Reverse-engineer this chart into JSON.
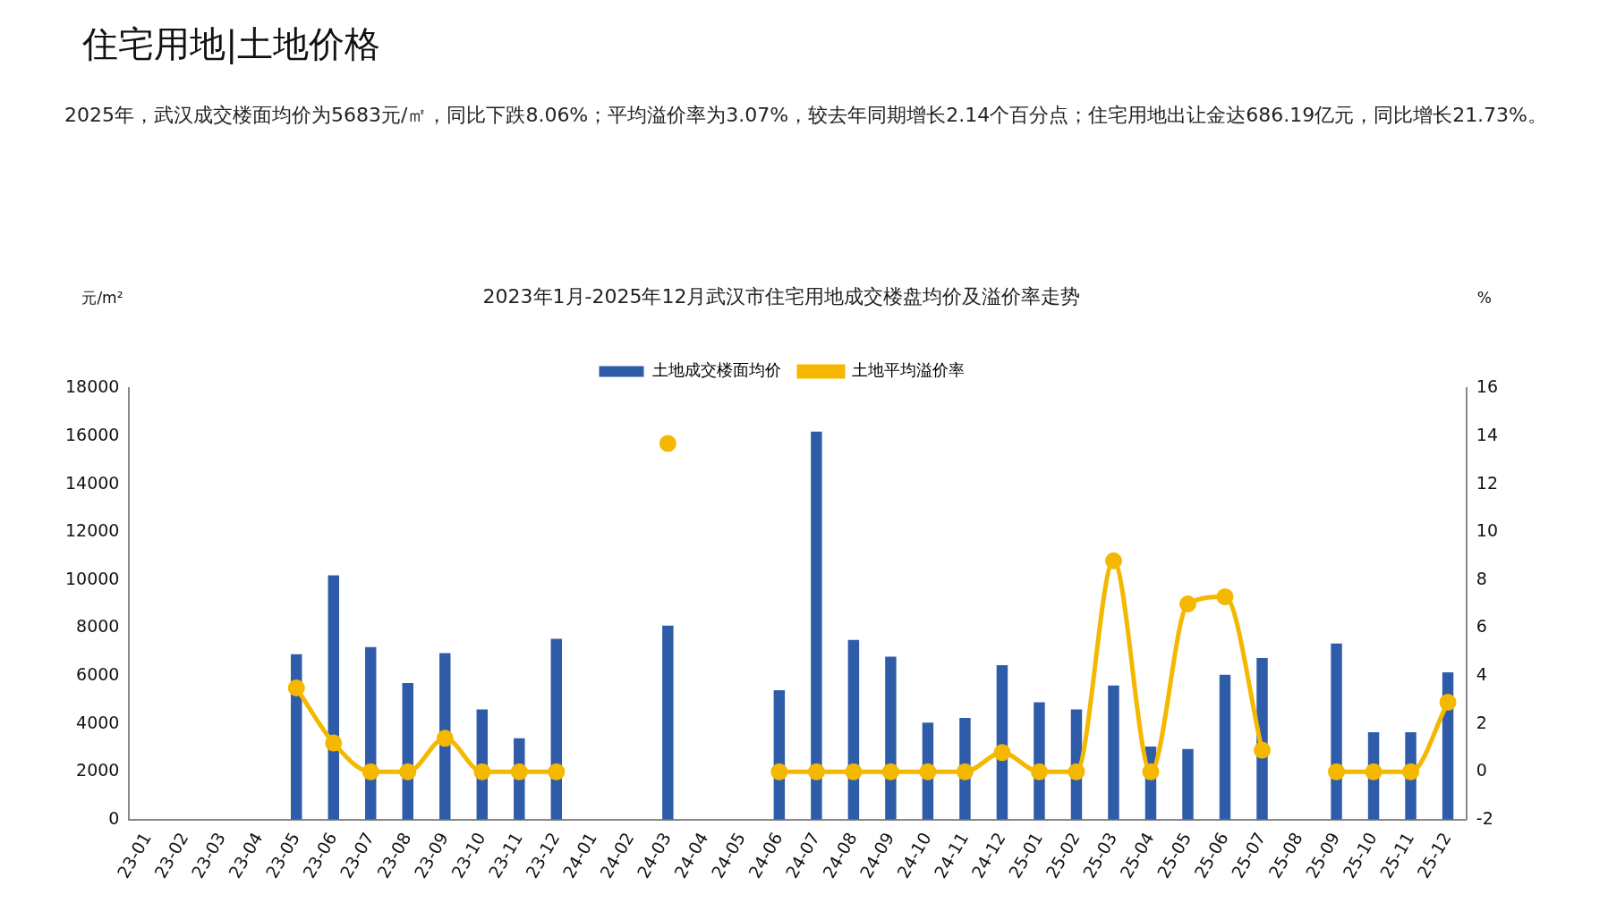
{
  "chart_data": {
    "type": "bar",
    "title": "2023年1月-2025年12月武汉市住宅用地成交楼盘均价及溢价率走势",
    "annotations": [
      "住宅用地|土地价格",
      "2025年，武汉成交楼面均价为5683元/㎡，同比下跌8.06%；平均溢价率为3.07%，较去年同期增长2.14个百分点；住宅用地出让金达686.19亿元，同比增长21.73%。"
    ],
    "ylabel": "元/m²",
    "y2label": "%",
    "categories": [
      "23-01",
      "23-02",
      "23-03",
      "23-04",
      "23-05",
      "23-06",
      "23-07",
      "23-08",
      "23-09",
      "23-10",
      "23-11",
      "23-12",
      "24-01",
      "24-02",
      "24-03",
      "24-04",
      "24-05",
      "24-06",
      "24-07",
      "24-08",
      "24-09",
      "24-10",
      "24-11",
      "24-12",
      "25-01",
      "25-02",
      "25-03",
      "25-04",
      "25-05",
      "25-06",
      "25-07",
      "25-08",
      "25-09",
      "25-10",
      "25-11",
      "25-12"
    ],
    "series": [
      {
        "name": "土地成交楼面均价",
        "color": "#2f5ca8",
        "values": [
          null,
          null,
          null,
          null,
          6900,
          10200,
          7200,
          5700,
          6950,
          4600,
          3400,
          7550,
          null,
          null,
          8100,
          null,
          null,
          5400,
          16200,
          7500,
          6800,
          4050,
          4250,
          6450,
          4900,
          4600,
          5600,
          3050,
          2950,
          6050,
          6750,
          null,
          7350,
          3650,
          3650,
          6150
        ]
      },
      {
        "name": "土地平均溢价率",
        "type": "line",
        "axis": "y2",
        "color": "#f5b800",
        "values": [
          null,
          null,
          null,
          null,
          3.5,
          1.2,
          0,
          0,
          1.4,
          0,
          0,
          0,
          null,
          null,
          13.7,
          null,
          null,
          0,
          0,
          0,
          0,
          0,
          0,
          0.8,
          0,
          0,
          8.8,
          0,
          7.0,
          7.3,
          0.9,
          null,
          0,
          0,
          0,
          2.9
        ]
      }
    ],
    "ylim": [
      0,
      18000
    ],
    "yticks": [
      0,
      2000,
      4000,
      6000,
      8000,
      10000,
      12000,
      14000,
      16000,
      18000
    ],
    "y2lim": [
      -2,
      16
    ],
    "y2ticks": [
      -2,
      0,
      2,
      4,
      6,
      8,
      10,
      12,
      14,
      16
    ],
    "legend": "top",
    "grid": false,
    "marker": "circle"
  }
}
